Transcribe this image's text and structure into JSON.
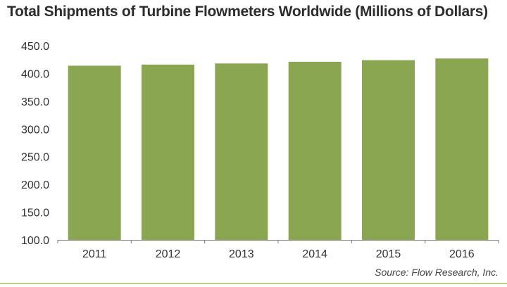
{
  "chart_data": {
    "type": "bar",
    "title": "Total Shipments of Turbine Flowmeters Worldwide (Millions of Dollars)",
    "categories": [
      "2011",
      "2012",
      "2013",
      "2014",
      "2015",
      "2016"
    ],
    "values": [
      414,
      416,
      418,
      421,
      424,
      427
    ],
    "ylim": [
      100,
      450
    ],
    "yticks": [
      "100.0",
      "150.0",
      "200.0",
      "250.0",
      "300.0",
      "350.0",
      "400.0",
      "450.0"
    ],
    "xlabel": "",
    "ylabel": "",
    "grid": false,
    "legend": "none",
    "source": "Source: Flow Research, Inc.",
    "colors": {
      "bar": "#8aa650",
      "axis": "#7f7f7f",
      "rule": "#b9cc93"
    }
  }
}
